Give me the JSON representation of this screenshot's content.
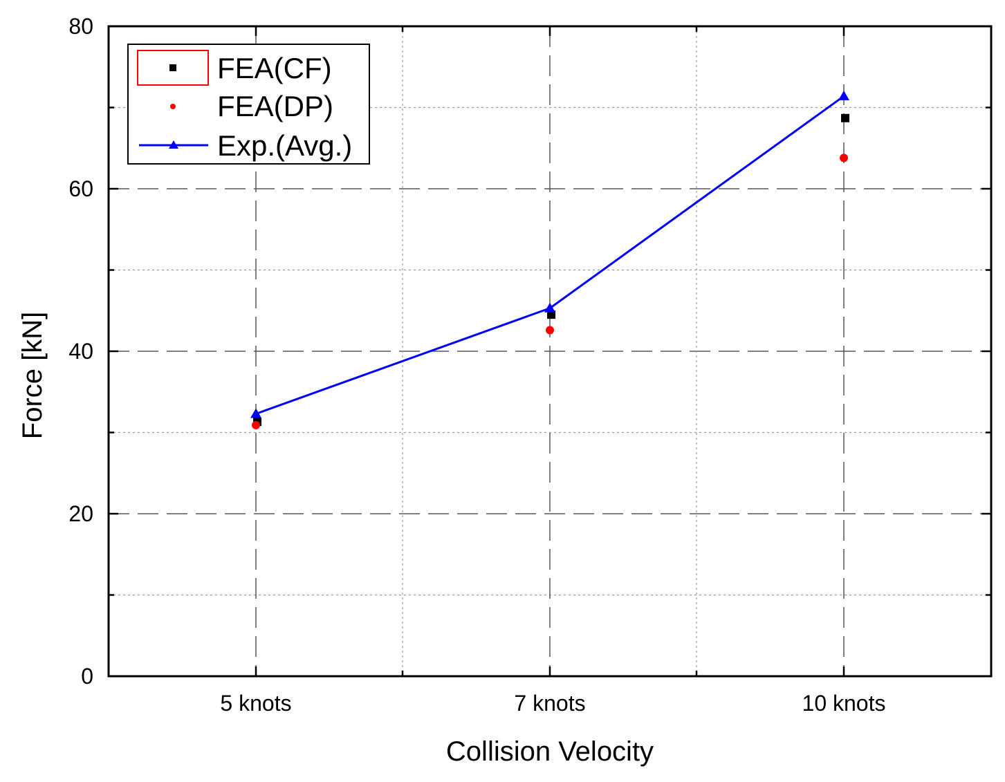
{
  "chart_data": {
    "type": "scatter",
    "title": "",
    "xlabel": "Collision Velocity",
    "ylabel": "Force [kN]",
    "categories": [
      "5 knots",
      "7 knots",
      "10 knots"
    ],
    "ylim": [
      0,
      80
    ],
    "yticks": [
      "0",
      "20",
      "40",
      "60",
      "80"
    ],
    "grid": true,
    "legend_position": "top-left",
    "series": [
      {
        "name": "FEA(CF)",
        "marker": "square",
        "line": false,
        "color": "#000000",
        "values": [
          31.3,
          44.5,
          68.7
        ]
      },
      {
        "name": "FEA(DP)",
        "marker": "circle",
        "line": false,
        "color": "#ff0000",
        "values": [
          30.9,
          42.6,
          63.8
        ]
      },
      {
        "name": "Exp.(Avg.)",
        "marker": "triangle",
        "line": true,
        "color": "#0000ff",
        "values": [
          32.3,
          45.3,
          71.4
        ]
      }
    ]
  }
}
